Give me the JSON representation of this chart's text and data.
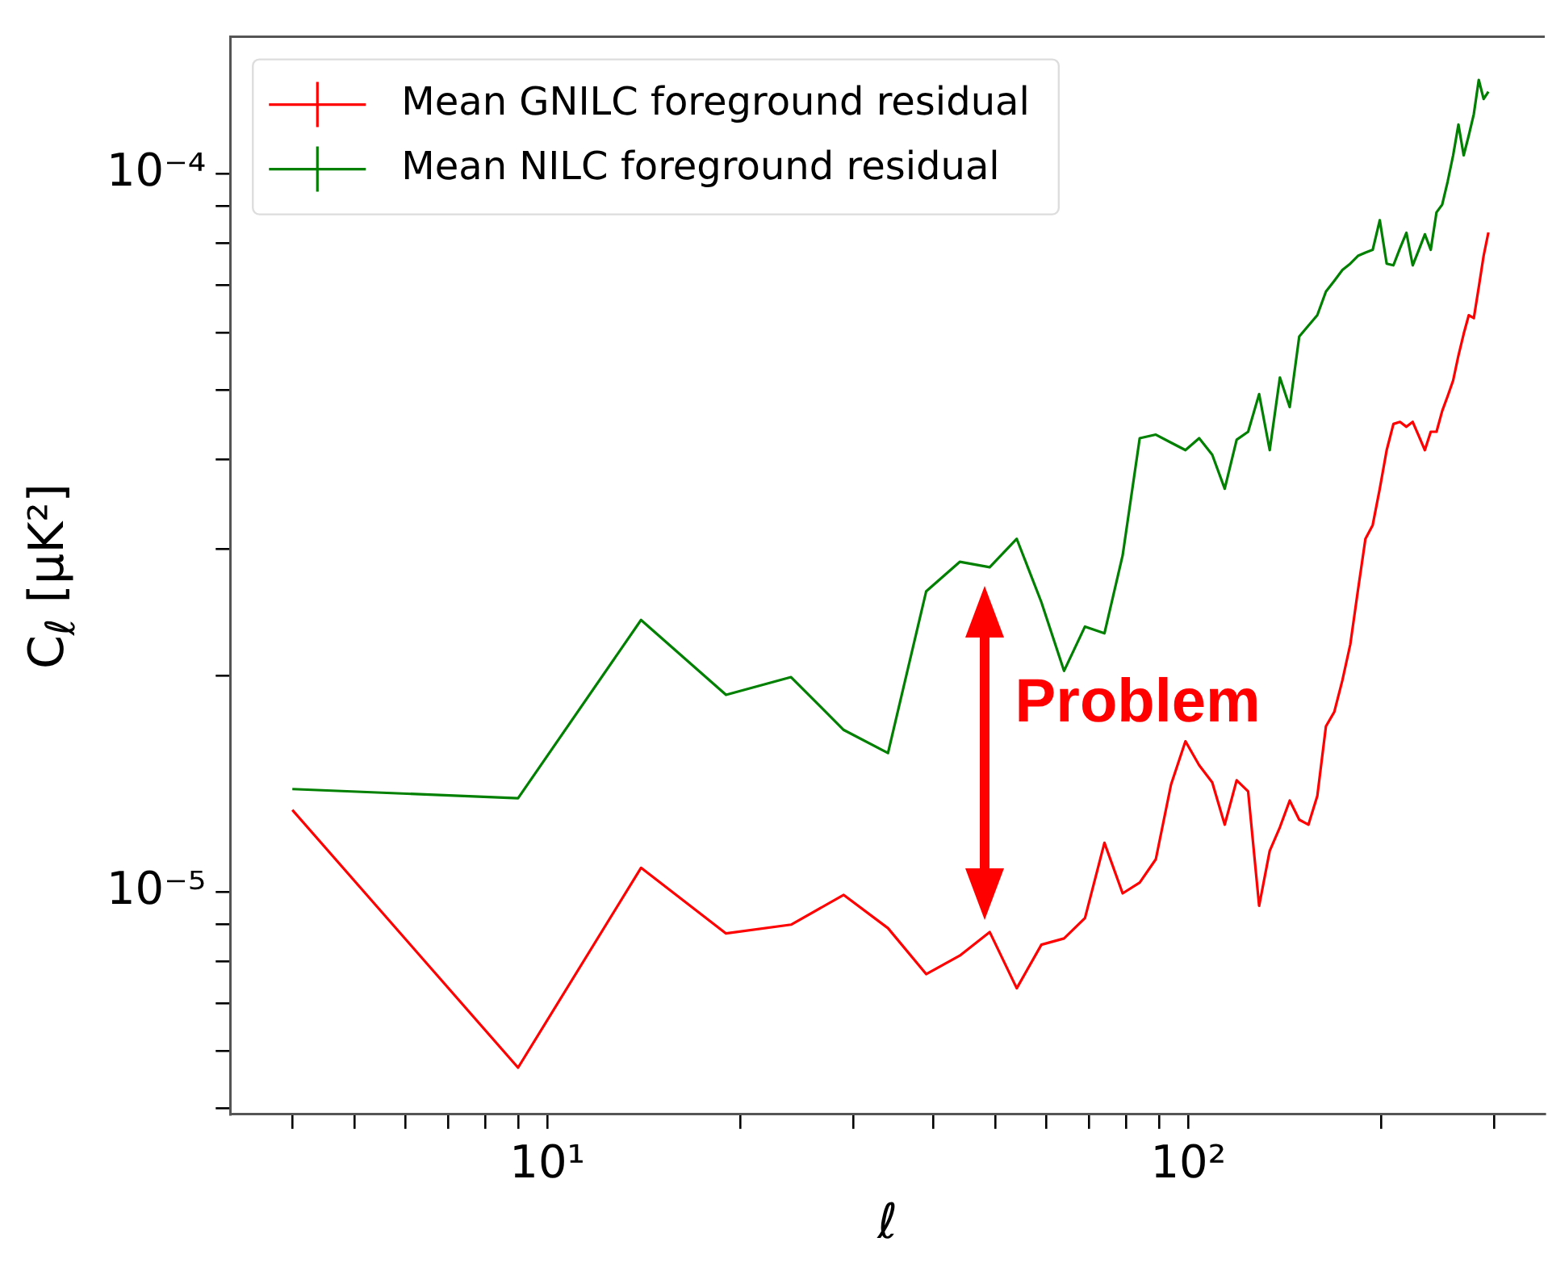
{
  "chart_data": {
    "type": "line",
    "xlabel": "ℓ",
    "ylabel": "C$_{ℓ}$ [μK²]",
    "log": "xy",
    "legend": "top left",
    "grid": false,
    "xlim": [
      3.2,
      360
    ],
    "ylim": [
      4.9e-06,
      0.000155
    ],
    "xticks": [
      {
        "value": 4,
        "label": null
      },
      {
        "value": 5,
        "label": null
      },
      {
        "value": 6,
        "label": null
      },
      {
        "value": 7,
        "label": null
      },
      {
        "value": 8,
        "label": null
      },
      {
        "value": 9,
        "label": null
      },
      {
        "value": 10,
        "label": "10¹"
      },
      {
        "value": 20,
        "label": null
      },
      {
        "value": 30,
        "label": null
      },
      {
        "value": 40,
        "label": null
      },
      {
        "value": 50,
        "label": null
      },
      {
        "value": 60,
        "label": null
      },
      {
        "value": 70,
        "label": null
      },
      {
        "value": 80,
        "label": null
      },
      {
        "value": 90,
        "label": null
      },
      {
        "value": 100,
        "label": "10²"
      },
      {
        "value": 200,
        "label": null
      },
      {
        "value": 300,
        "label": null
      }
    ],
    "yticks": [
      {
        "value": 5e-06,
        "label": null
      },
      {
        "value": 6e-06,
        "label": null
      },
      {
        "value": 7e-06,
        "label": null
      },
      {
        "value": 8e-06,
        "label": null
      },
      {
        "value": 9e-06,
        "label": null
      },
      {
        "value": 1e-05,
        "label": "10⁻⁵"
      },
      {
        "value": 2e-05,
        "label": null
      },
      {
        "value": 3e-05,
        "label": null
      },
      {
        "value": 4e-05,
        "label": null
      },
      {
        "value": 5e-05,
        "label": null
      },
      {
        "value": 6e-05,
        "label": null
      },
      {
        "value": 7e-05,
        "label": null
      },
      {
        "value": 8e-05,
        "label": null
      },
      {
        "value": 9e-05,
        "label": null
      },
      {
        "value": 0.0001,
        "label": "10⁻⁴"
      }
    ],
    "x": [
      4,
      9,
      14,
      19,
      24,
      29,
      34,
      39,
      44,
      49,
      54,
      59,
      64,
      69,
      74,
      79,
      84,
      89,
      94,
      99,
      104,
      109,
      114,
      119,
      124,
      129,
      134,
      139,
      144,
      149,
      154,
      159,
      164,
      169,
      174,
      179,
      184,
      189,
      194,
      199,
      204,
      209,
      214,
      219,
      224,
      229,
      234,
      239,
      244,
      249,
      254,
      259,
      264,
      269,
      274,
      279,
      284,
      289,
      294
    ],
    "series": [
      {
        "name": "Mean GNILC foreground residual",
        "color": "#ff0000",
        "values": [
          1.3e-05,
          5.69e-06,
          1.08e-05,
          8.75e-06,
          9e-06,
          9.9e-06,
          8.9e-06,
          7.68e-06,
          8.15e-06,
          8.79e-06,
          7.34e-06,
          8.44e-06,
          8.61e-06,
          9.19e-06,
          1.17e-05,
          9.95e-06,
          1.03e-05,
          1.11e-05,
          1.41e-05,
          1.62e-05,
          1.5e-05,
          1.42e-05,
          1.24e-05,
          1.43e-05,
          1.38e-05,
          9.56e-06,
          1.14e-05,
          1.23e-05,
          1.34e-05,
          1.26e-05,
          1.24e-05,
          1.36e-05,
          1.7e-05,
          1.78e-05,
          1.97e-05,
          2.21e-05,
          2.63e-05,
          3.1e-05,
          3.24e-05,
          3.64e-05,
          4.12e-05,
          4.48e-05,
          4.51e-05,
          4.44e-05,
          4.51e-05,
          4.31e-05,
          4.12e-05,
          4.37e-05,
          4.37e-05,
          4.67e-05,
          4.9e-05,
          5.15e-05,
          5.58e-05,
          5.98e-05,
          6.35e-05,
          6.29e-05,
          6.95e-05,
          7.68e-05,
          8.28e-05
        ]
      },
      {
        "name": "Mean NILC foreground residual",
        "color": "#008000",
        "values": [
          1.39e-05,
          1.35e-05,
          2.39e-05,
          1.88e-05,
          1.99e-05,
          1.68e-05,
          1.56e-05,
          2.62e-05,
          2.88e-05,
          2.83e-05,
          3.1e-05,
          2.53e-05,
          2.03e-05,
          2.34e-05,
          2.29e-05,
          2.94e-05,
          4.28e-05,
          4.33e-05,
          4.22e-05,
          4.12e-05,
          4.28e-05,
          4.06e-05,
          3.64e-05,
          4.26e-05,
          4.37e-05,
          4.93e-05,
          4.12e-05,
          5.2e-05,
          4.73e-05,
          5.93e-05,
          6.14e-05,
          6.35e-05,
          6.85e-05,
          7.09e-05,
          7.34e-05,
          7.49e-05,
          7.68e-05,
          7.76e-05,
          7.83e-05,
          8.61e-05,
          7.49e-05,
          7.45e-05,
          7.87e-05,
          8.27e-05,
          7.45e-05,
          7.83e-05,
          8.23e-05,
          7.83e-05,
          8.83e-05,
          9.05e-05,
          9.75e-05,
          0.000106,
          0.000117,
          0.000106,
          0.000113,
          0.000121,
          0.000135,
          0.000127,
          0.00013
        ]
      }
    ],
    "annotations": [
      "Problem"
    ]
  }
}
